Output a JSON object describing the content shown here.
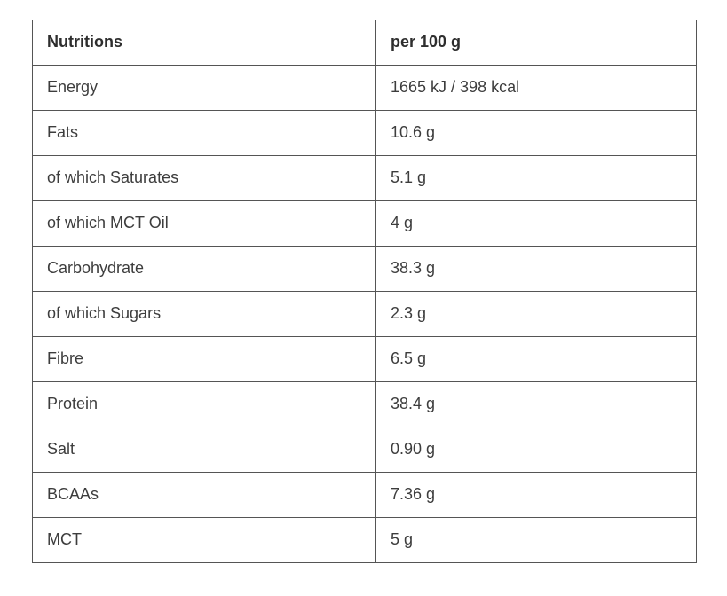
{
  "table": {
    "headers": {
      "name_col": "Nutritions",
      "value_col": "per 100 g"
    },
    "rows": [
      {
        "name": "Energy",
        "value": "1665 kJ / 398 kcal"
      },
      {
        "name": "Fats",
        "value": "10.6 g"
      },
      {
        "name": "of which Saturates",
        "value": "5.1 g"
      },
      {
        "name": "of which MCT Oil",
        "value": "4 g"
      },
      {
        "name": "Carbohydrate",
        "value": "38.3 g"
      },
      {
        "name": "of which Sugars",
        "value": "2.3 g"
      },
      {
        "name": "Fibre",
        "value": "6.5 g"
      },
      {
        "name": "Protein",
        "value": "38.4 g"
      },
      {
        "name": "Salt",
        "value": "0.90 g"
      },
      {
        "name": "BCAAs",
        "value": "7.36 g"
      },
      {
        "name": "MCT",
        "value": "5 g"
      }
    ],
    "colors": {
      "border": "#555555",
      "header_text": "#2e2e2e",
      "body_text": "#3d3d3d",
      "background": "#ffffff"
    }
  }
}
